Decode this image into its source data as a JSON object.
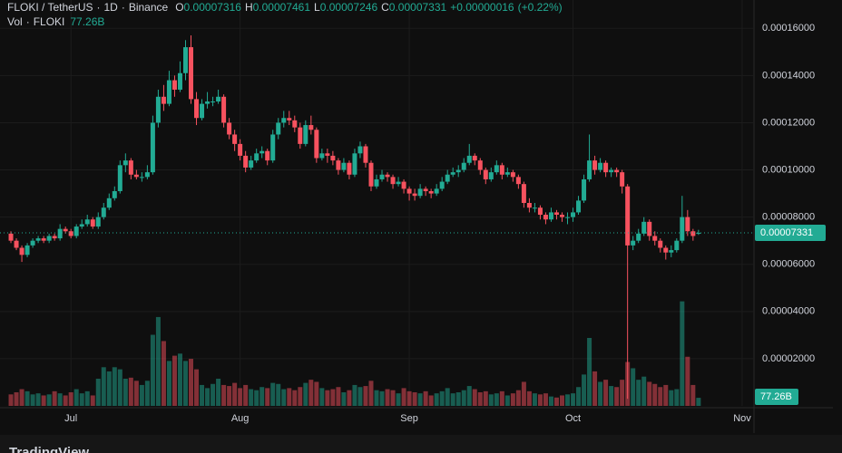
{
  "chart_data": {
    "type": "candlestick",
    "legend": {
      "symbol": "FLOKI / TetherUS",
      "separator": "·",
      "interval": "1D",
      "exchange": "Binance",
      "open": {
        "prefix": "O",
        "value": {
          "value": 7.316e-05,
          "label": "0.00007316"
        }
      },
      "high": {
        "prefix": "H",
        "value": {
          "value": 7.461e-05,
          "label": "0.00007461"
        }
      },
      "low": {
        "prefix": "L",
        "value": {
          "value": 7.246e-05,
          "label": "0.00007246"
        }
      },
      "close": {
        "prefix": "C",
        "value": {
          "value": 7.331e-05,
          "label": "0.00007331"
        }
      },
      "change": {
        "value": 1.6e-07,
        "label": "+0.00000016"
      },
      "change_pct": {
        "value": 0.22,
        "label": "(+0.22%)"
      }
    },
    "volume_legend": {
      "name": "Vol",
      "symbol": "FLOKI",
      "value": {
        "value": 77.26,
        "label": "77.26B"
      }
    },
    "up_color": "#22ab94",
    "down_color": "#f7525f",
    "xlim": [
      -2,
      136
    ],
    "xticks": [
      {
        "value": 11,
        "label": "Jul"
      },
      {
        "value": 42,
        "label": "Aug"
      },
      {
        "value": 73,
        "label": "Sep"
      },
      {
        "value": 103,
        "label": "Oct"
      },
      {
        "value": 134,
        "label": "Nov"
      }
    ],
    "ylim": [
      0,
      0.000172
    ],
    "yticks": [
      {
        "value": 2e-05,
        "label": "0.00002000"
      },
      {
        "value": 4e-05,
        "label": "0.00004000"
      },
      {
        "value": 6e-05,
        "label": "0.00006000"
      },
      {
        "value": 8e-05,
        "label": "0.00008000"
      },
      {
        "value": 0.0001,
        "label": "0.00010000"
      },
      {
        "value": 0.00012,
        "label": "0.00012000"
      },
      {
        "value": 0.00014,
        "label": "0.00014000"
      },
      {
        "value": 0.00016,
        "label": "0.00016000"
      }
    ],
    "volume_lim": [
      0,
      1300
    ],
    "grid": true,
    "candles": [
      [
        7.3e-05,
        7.4e-05,
        6.9e-05,
        7e-05
      ],
      [
        7e-05,
        7.1e-05,
        6.6e-05,
        6.7e-05
      ],
      [
        6.7e-05,
        6.8e-05,
        6.1e-05,
        6.4e-05
      ],
      [
        6.4e-05,
        6.9e-05,
        6.3e-05,
        6.8e-05
      ],
      [
        6.8e-05,
        7.1e-05,
        6.7e-05,
        7e-05
      ],
      [
        7e-05,
        7.2e-05,
        6.9e-05,
        7.1e-05
      ],
      [
        7.1e-05,
        7.2e-05,
        6.9e-05,
        7e-05
      ],
      [
        7e-05,
        7.3e-05,
        6.9e-05,
        7.2e-05
      ],
      [
        7.2e-05,
        7.3e-05,
        7e-05,
        7.1e-05
      ],
      [
        7.1e-05,
        7.7e-05,
        7e-05,
        7.5e-05
      ],
      [
        7.5e-05,
        7.6e-05,
        7.3e-05,
        7.4e-05
      ],
      [
        7.4e-05,
        7.5e-05,
        7.1e-05,
        7.2e-05
      ],
      [
        7.2e-05,
        7.7e-05,
        7.1e-05,
        7.6e-05
      ],
      [
        7.6e-05,
        7.9e-05,
        7.5e-05,
        7.7e-05
      ],
      [
        7.7e-05,
        8.1e-05,
        7.6e-05,
        7.9e-05
      ],
      [
        7.9e-05,
        8e-05,
        7.5e-05,
        7.6e-05
      ],
      [
        7.6e-05,
        8.2e-05,
        7.5e-05,
        8e-05
      ],
      [
        8e-05,
        8.6e-05,
        7.9e-05,
        8.4e-05
      ],
      [
        8.4e-05,
        9e-05,
        8.3e-05,
        8.8e-05
      ],
      [
        8.8e-05,
        9.3e-05,
        8.7e-05,
        9.1e-05
      ],
      [
        9.1e-05,
        0.000104,
        9e-05,
        0.000102
      ],
      [
        0.000102,
        0.000107,
        9.9e-05,
        0.000104
      ],
      [
        0.000104,
        0.000105,
        9.6e-05,
        9.8e-05
      ],
      [
        9.8e-05,
        0.0001,
        9.6e-05,
        9.7e-05
      ],
      [
        9.7e-05,
        9.9e-05,
        9.5e-05,
        9.7e-05
      ],
      [
        9.7e-05,
        0.000102,
        9.6e-05,
        9.9e-05
      ],
      [
        9.9e-05,
        0.000123,
        9.8e-05,
        0.00012
      ],
      [
        0.00012,
        0.000134,
        0.000118,
        0.000131
      ],
      [
        0.000131,
        0.000136,
        0.000125,
        0.000128
      ],
      [
        0.000128,
        0.000142,
        0.000127,
        0.000138
      ],
      [
        0.000138,
        0.00014,
        0.000131,
        0.000134
      ],
      [
        0.000134,
        0.000146,
        0.000133,
        0.000141
      ],
      [
        0.000141,
        0.000155,
        0.000138,
        0.000152
      ],
      [
        0.000152,
        0.000157,
        0.000128,
        0.00013
      ],
      [
        0.00013,
        0.000133,
        0.000119,
        0.000122
      ],
      [
        0.000122,
        0.00013,
        0.000121,
        0.000128
      ],
      [
        0.000128,
        0.000133,
        0.000126,
        0.000129
      ],
      [
        0.000129,
        0.000131,
        0.000127,
        0.000129
      ],
      [
        0.000129,
        0.000134,
        0.000128,
        0.000131
      ],
      [
        0.000131,
        0.000132,
        0.000118,
        0.00012
      ],
      [
        0.00012,
        0.000122,
        0.000113,
        0.000115
      ],
      [
        0.000115,
        0.000117,
        0.000108,
        0.000111
      ],
      [
        0.000111,
        0.000113,
        0.000104,
        0.000106
      ],
      [
        0.000106,
        0.000108,
        9.9e-05,
        0.000101
      ],
      [
        0.000101,
        0.000106,
        0.0001,
        0.000104
      ],
      [
        0.000104,
        0.000109,
        0.000103,
        0.000107
      ],
      [
        0.000107,
        0.00011,
        0.000105,
        0.000108
      ],
      [
        0.000108,
        0.000109,
        0.000102,
        0.000104
      ],
      [
        0.000104,
        0.000117,
        0.000103,
        0.000115
      ],
      [
        0.000115,
        0.000122,
        0.000113,
        0.00012
      ],
      [
        0.00012,
        0.000125,
        0.000118,
        0.000122
      ],
      [
        0.000122,
        0.000125,
        0.000119,
        0.000121
      ],
      [
        0.000121,
        0.000123,
        0.000116,
        0.000118
      ],
      [
        0.000118,
        0.00012,
        0.000109,
        0.000111
      ],
      [
        0.000111,
        0.000121,
        0.00011,
        0.000119
      ],
      [
        0.000119,
        0.000123,
        0.000115,
        0.000117
      ],
      [
        0.000117,
        0.000118,
        0.000103,
        0.000105
      ],
      [
        0.000105,
        0.000109,
        0.000104,
        0.000107
      ],
      [
        0.000107,
        0.000109,
        0.000103,
        0.000106
      ],
      [
        0.000106,
        0.000108,
        0.000102,
        0.000104
      ],
      [
        0.000104,
        0.000105,
        9.8e-05,
        0.0001
      ],
      [
        0.0001,
        0.000105,
        9.9e-05,
        0.000103
      ],
      [
        0.000103,
        0.000104,
        9.6e-05,
        9.8e-05
      ],
      [
        9.8e-05,
        0.000109,
        9.7e-05,
        0.000107
      ],
      [
        0.000107,
        0.000112,
        0.000105,
        0.00011
      ],
      [
        0.00011,
        0.000111,
        0.000101,
        0.000103
      ],
      [
        0.000103,
        0.000104,
        9.1e-05,
        9.3e-05
      ],
      [
        9.3e-05,
        9.8e-05,
        9.2e-05,
        9.6e-05
      ],
      [
        9.6e-05,
        0.0001,
        9.5e-05,
        9.8e-05
      ],
      [
        9.8e-05,
        9.9e-05,
        9.5e-05,
        9.7e-05
      ],
      [
        9.7e-05,
        9.8e-05,
        9.2e-05,
        9.4e-05
      ],
      [
        9.4e-05,
        9.7e-05,
        9.3e-05,
        9.5e-05
      ],
      [
        9.5e-05,
        9.6e-05,
        9e-05,
        9.2e-05
      ],
      [
        9.2e-05,
        9.3e-05,
        8.7e-05,
        9e-05
      ],
      [
        9e-05,
        9.2e-05,
        8.7e-05,
        8.9e-05
      ],
      [
        8.9e-05,
        9.4e-05,
        8.8e-05,
        9.2e-05
      ],
      [
        9.2e-05,
        9.3e-05,
        8.9e-05,
        9.1e-05
      ],
      [
        9.1e-05,
        9.2e-05,
        8.8e-05,
        9e-05
      ],
      [
        9e-05,
        9.4e-05,
        8.9e-05,
        9.2e-05
      ],
      [
        9.2e-05,
        9.7e-05,
        9.1e-05,
        9.5e-05
      ],
      [
        9.5e-05,
        0.0001,
        9.4e-05,
        9.8e-05
      ],
      [
        9.8e-05,
        0.000101,
        9.7e-05,
        9.9e-05
      ],
      [
        9.9e-05,
        0.000102,
        9.7e-05,
        0.0001
      ],
      [
        0.0001,
        0.000105,
        9.9e-05,
        0.000103
      ],
      [
        0.000103,
        0.000111,
        0.000102,
        0.000106
      ],
      [
        0.000106,
        0.000107,
        0.000102,
        0.000104
      ],
      [
        0.000104,
        0.000105,
        9.8e-05,
        0.0001
      ],
      [
        0.0001,
        0.000101,
        9.4e-05,
        9.6e-05
      ],
      [
        9.6e-05,
        0.000101,
        9.5e-05,
        9.9e-05
      ],
      [
        9.9e-05,
        0.000104,
        9.8e-05,
        0.000102
      ],
      [
        0.000102,
        0.000103,
        9.6e-05,
        9.8e-05
      ],
      [
        9.8e-05,
        0.000101,
        9.7e-05,
        9.9e-05
      ],
      [
        9.9e-05,
        0.0001,
        9.5e-05,
        9.7e-05
      ],
      [
        9.7e-05,
        9.8e-05,
        9.2e-05,
        9.4e-05
      ],
      [
        9.4e-05,
        9.5e-05,
        8.4e-05,
        8.6e-05
      ],
      [
        8.6e-05,
        8.8e-05,
        8.2e-05,
        8.4e-05
      ],
      [
        8.4e-05,
        8.6e-05,
        8.2e-05,
        8.4e-05
      ],
      [
        8.4e-05,
        8.5e-05,
        7.9e-05,
        8.1e-05
      ],
      [
        8.1e-05,
        8.2e-05,
        7.7e-05,
        7.9e-05
      ],
      [
        7.9e-05,
        8.4e-05,
        7.8e-05,
        8.2e-05
      ],
      [
        8.2e-05,
        8.3e-05,
        7.9e-05,
        8.1e-05
      ],
      [
        8.1e-05,
        8.2e-05,
        7.8e-05,
        8e-05
      ],
      [
        8e-05,
        8.2e-05,
        7.7e-05,
        8e-05
      ],
      [
        8e-05,
        8.4e-05,
        7.8e-05,
        8.2e-05
      ],
      [
        8.2e-05,
        8.9e-05,
        8.1e-05,
        8.7e-05
      ],
      [
        8.7e-05,
        9.8e-05,
        8.6e-05,
        9.6e-05
      ],
      [
        9.6e-05,
        0.000115,
        9.5e-05,
        0.000104
      ],
      [
        0.000104,
        0.000106,
        9.8e-05,
        0.0001
      ],
      [
        0.0001,
        0.000105,
        9.9e-05,
        0.000103
      ],
      [
        0.000103,
        0.000104,
        9.7e-05,
        9.9e-05
      ],
      [
        9.9e-05,
        0.000101,
        9.7e-05,
        0.0001
      ],
      [
        0.0001,
        0.000101,
        9.7e-05,
        9.9e-05
      ],
      [
        9.9e-05,
        0.0001,
        9e-05,
        9.3e-05
      ],
      [
        9.3e-05,
        9.4e-05,
        3e-06,
        6.8e-05
      ],
      [
        6.8e-05,
        7.2e-05,
        6.6e-05,
        7e-05
      ],
      [
        7e-05,
        7.5e-05,
        6.9e-05,
        7.3e-05
      ],
      [
        7.3e-05,
        8e-05,
        7.2e-05,
        7.8e-05
      ],
      [
        7.8e-05,
        7.9e-05,
        7e-05,
        7.2e-05
      ],
      [
        7.2e-05,
        7.4e-05,
        6.8e-05,
        7e-05
      ],
      [
        7e-05,
        7.1e-05,
        6.5e-05,
        6.7e-05
      ],
      [
        6.7e-05,
        6.8e-05,
        6.2e-05,
        6.5e-05
      ],
      [
        6.5e-05,
        6.8e-05,
        6.3e-05,
        6.6e-05
      ],
      [
        6.6e-05,
        7.1e-05,
        6.5e-05,
        7e-05
      ],
      [
        7e-05,
        8.9e-05,
        6.9e-05,
        8e-05
      ],
      [
        8e-05,
        8.3e-05,
        7.2e-05,
        7.4e-05
      ],
      [
        7.4e-05,
        7.5e-05,
        7e-05,
        7.2e-05
      ],
      [
        7.316e-05,
        7.461e-05,
        7.246e-05,
        7.331e-05
      ]
    ],
    "volumes": [
      110,
      130,
      160,
      140,
      110,
      120,
      100,
      110,
      140,
      120,
      100,
      130,
      160,
      120,
      140,
      100,
      260,
      370,
      330,
      370,
      350,
      260,
      270,
      240,
      200,
      240,
      680,
      850,
      620,
      430,
      480,
      500,
      430,
      450,
      350,
      200,
      170,
      210,
      260,
      200,
      190,
      220,
      170,
      200,
      160,
      150,
      180,
      170,
      220,
      210,
      160,
      170,
      150,
      180,
      220,
      250,
      230,
      170,
      150,
      160,
      180,
      130,
      150,
      200,
      180,
      190,
      240,
      150,
      140,
      160,
      150,
      120,
      170,
      140,
      130,
      120,
      140,
      100,
      120,
      140,
      170,
      120,
      130,
      150,
      190,
      160,
      130,
      140,
      110,
      120,
      140,
      100,
      120,
      150,
      230,
      140,
      120,
      110,
      120,
      90,
      80,
      100,
      110,
      120,
      180,
      300,
      650,
      330,
      230,
      250,
      190,
      180,
      250,
      420,
      360,
      250,
      280,
      230,
      210,
      180,
      200,
      150,
      160,
      1000,
      470,
      200,
      77.26
    ],
    "branding": "TradingView"
  }
}
